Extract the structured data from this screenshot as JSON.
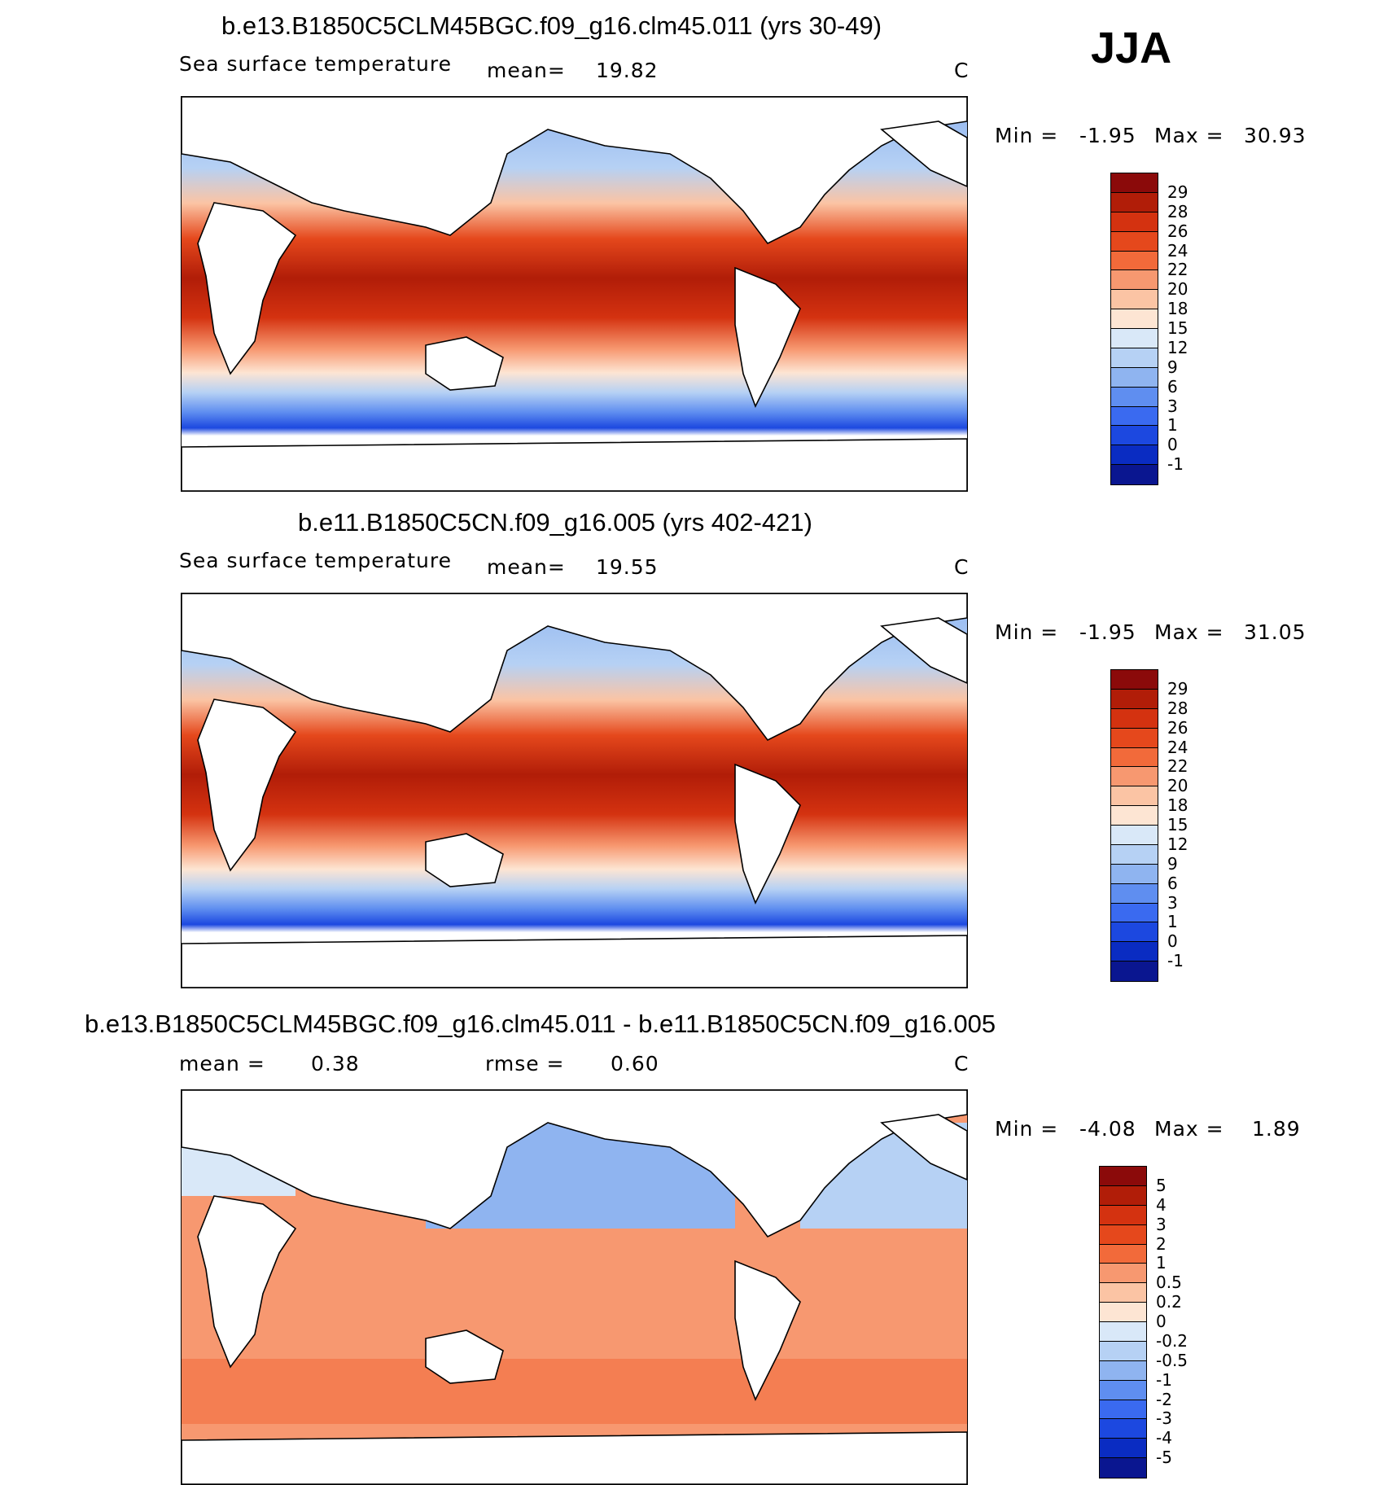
{
  "season": "JJA",
  "units": "C",
  "panels": [
    {
      "title": "b.e13.B1850C5CLM45BGC.f09_g16.clm45.011 (yrs 30-49)",
      "variable": "Sea surface temperature",
      "stat1_label": "mean=",
      "stat1_value": "19.82",
      "units": "C",
      "min_label": "Min =",
      "min_value": "-1.95",
      "max_label": "Max =",
      "max_value": "30.93",
      "colorbar_labels": [
        "29",
        "28",
        "26",
        "24",
        "22",
        "20",
        "18",
        "15",
        "12",
        "9",
        "6",
        "3",
        "1",
        "0",
        "-1"
      ],
      "colorbar_colors": [
        "#8b0a0a",
        "#b11d08",
        "#d43210",
        "#e5481c",
        "#f26a3a",
        "#f79870",
        "#fbc4a4",
        "#fde5d3",
        "#d9e8f8",
        "#b6d1f4",
        "#8fb4f0",
        "#5f8ef0",
        "#3a6af0",
        "#1c48e0",
        "#0a2cc2",
        "#0a1690"
      ]
    },
    {
      "title": "b.e11.B1850C5CN.f09_g16.005 (yrs 402-421)",
      "variable": "Sea surface temperature",
      "stat1_label": "mean=",
      "stat1_value": "19.55",
      "units": "C",
      "min_label": "Min =",
      "min_value": "-1.95",
      "max_label": "Max =",
      "max_value": "31.05",
      "colorbar_labels": [
        "29",
        "28",
        "26",
        "24",
        "22",
        "20",
        "18",
        "15",
        "12",
        "9",
        "6",
        "3",
        "1",
        "0",
        "-1"
      ],
      "colorbar_colors": [
        "#8b0a0a",
        "#b11d08",
        "#d43210",
        "#e5481c",
        "#f26a3a",
        "#f79870",
        "#fbc4a4",
        "#fde5d3",
        "#d9e8f8",
        "#b6d1f4",
        "#8fb4f0",
        "#5f8ef0",
        "#3a6af0",
        "#1c48e0",
        "#0a2cc2",
        "#0a1690"
      ]
    },
    {
      "title": "b.e13.B1850C5CLM45BGC.f09_g16.clm45.011 - b.e11.B1850C5CN.f09_g16.005",
      "stat1_label": "mean =",
      "stat1_value": "0.38",
      "stat2_label": "rmse =",
      "stat2_value": "0.60",
      "units": "C",
      "min_label": "Min =",
      "min_value": "-4.08",
      "max_label": "Max =",
      "max_value": "1.89",
      "colorbar_labels": [
        "5",
        "4",
        "3",
        "2",
        "1",
        "0.5",
        "0.2",
        "0",
        "-0.2",
        "-0.5",
        "-1",
        "-2",
        "-3",
        "-4",
        "-5"
      ],
      "colorbar_colors": [
        "#8b0a0a",
        "#b11d08",
        "#d43210",
        "#e5481c",
        "#f26a3a",
        "#f79870",
        "#fbc4a4",
        "#fde5d3",
        "#d9e8f8",
        "#b6d1f4",
        "#8fb4f0",
        "#5f8ef0",
        "#3a6af0",
        "#1c48e0",
        "#0a2cc2",
        "#0a1690"
      ]
    }
  ],
  "chart_data": [
    {
      "type": "heatmap",
      "title": "b.e13.B1850C5CLM45BGC.f09_g16.clm45.011 (yrs 30-49)",
      "subtitle": "Sea surface temperature",
      "mean": 19.82,
      "min": -1.95,
      "max": 30.93,
      "contour_levels": [
        -1,
        0,
        1,
        3,
        6,
        9,
        12,
        15,
        18,
        20,
        22,
        24,
        26,
        28,
        29
      ]
    },
    {
      "type": "heatmap",
      "title": "b.e11.B1850C5CN.f09_g16.005 (yrs 402-421)",
      "subtitle": "Sea surface temperature",
      "mean": 19.55,
      "min": -1.95,
      "max": 31.05,
      "contour_levels": [
        -1,
        0,
        1,
        3,
        6,
        9,
        12,
        15,
        18,
        20,
        22,
        24,
        26,
        28,
        29
      ]
    },
    {
      "type": "heatmap",
      "title": "b.e13.B1850C5CLM45BGC.f09_g16.clm45.011 - b.e11.B1850C5CN.f09_g16.005",
      "mean": 0.38,
      "rmse": 0.6,
      "min": -4.08,
      "max": 1.89,
      "contour_levels": [
        -5,
        -4,
        -3,
        -2,
        -1,
        -0.5,
        -0.2,
        0,
        0.2,
        0.5,
        1,
        2,
        3,
        4,
        5
      ]
    }
  ]
}
